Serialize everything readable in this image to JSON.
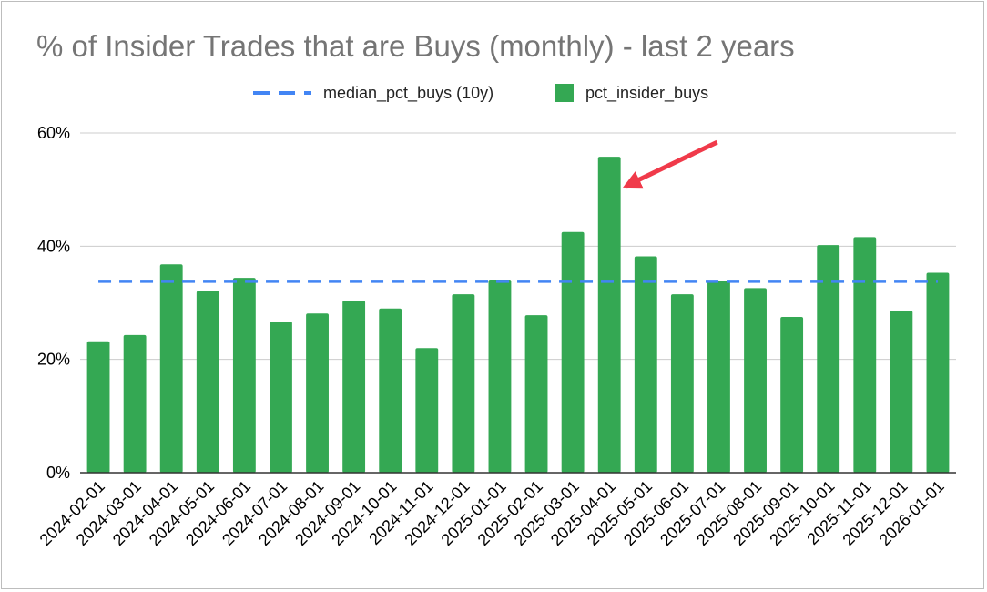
{
  "chart_data": {
    "type": "bar",
    "title": "% of Insider Trades that are Buys (monthly) - last 2 years",
    "xlabel": "",
    "ylabel": "",
    "categories": [
      "2024-02-01",
      "2024-03-01",
      "2024-04-01",
      "2024-05-01",
      "2024-06-01",
      "2024-07-01",
      "2024-08-01",
      "2024-09-01",
      "2024-10-01",
      "2024-11-01",
      "2024-12-01",
      "2025-01-01",
      "2025-02-01",
      "2025-03-01",
      "2025-04-01",
      "2025-05-01",
      "2025-06-01",
      "2025-07-01",
      "2025-08-01",
      "2025-09-01",
      "2025-10-01",
      "2025-11-01",
      "2025-12-01",
      "2026-01-01"
    ],
    "series": [
      {
        "name": "pct_insider_buys",
        "kind": "bar",
        "color": "#34a853",
        "values": [
          23.2,
          24.3,
          36.8,
          32.1,
          34.4,
          26.7,
          28.1,
          30.4,
          29.0,
          22.0,
          31.5,
          34.1,
          27.8,
          42.5,
          55.8,
          38.2,
          31.5,
          33.8,
          32.6,
          27.5,
          40.2,
          41.6,
          28.6,
          35.3
        ]
      },
      {
        "name": "median_pct_buys (10y)",
        "kind": "line",
        "style": "dashed",
        "color": "#4285f4",
        "values": [
          33.8,
          33.8,
          33.8,
          33.8,
          33.8,
          33.8,
          33.8,
          33.8,
          33.8,
          33.8,
          33.8,
          33.8,
          33.8,
          33.8,
          33.8,
          33.8,
          33.8,
          33.8,
          33.8,
          33.8,
          33.8,
          33.8,
          33.8,
          33.8
        ]
      }
    ],
    "ylim": [
      0,
      60
    ],
    "yticks": [
      "0%",
      "20%",
      "40%",
      "60%"
    ],
    "ytick_values": [
      0,
      20,
      40,
      60
    ],
    "grid": true,
    "legend_position": "top",
    "annotation": {
      "type": "arrow",
      "color": "#f03a4a",
      "target_category": "2025-04-01"
    },
    "axis_color": "#333333",
    "grid_color": "#cccccc",
    "title_color": "#757575"
  }
}
